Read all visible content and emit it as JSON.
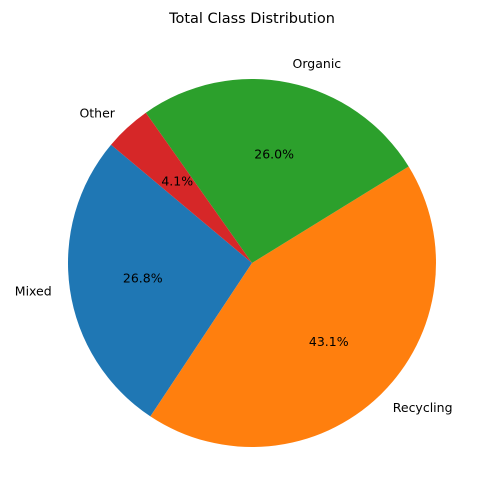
{
  "chart_data": {
    "type": "pie",
    "title": "Total Class Distribution",
    "start_angle_deg": 140,
    "direction": "counterclockwise",
    "slices": [
      {
        "label": "Mixed",
        "value": 26.8,
        "pct_label": "26.8%",
        "color": "#1f77b4"
      },
      {
        "label": "Recycling",
        "value": 43.1,
        "pct_label": "43.1%",
        "color": "#ff7f0e"
      },
      {
        "label": "Organic",
        "value": 26.0,
        "pct_label": "26.0%",
        "color": "#2ca02c"
      },
      {
        "label": "Other",
        "value": 4.1,
        "pct_label": "4.1%",
        "color": "#d62728"
      }
    ]
  }
}
